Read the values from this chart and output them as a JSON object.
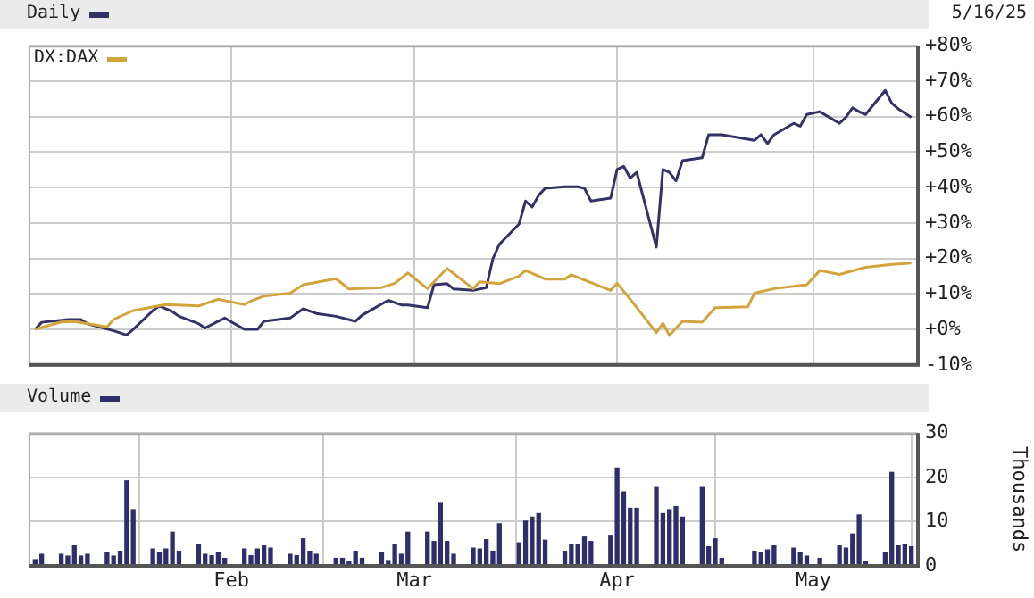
{
  "chart_data": [
    {
      "type": "line",
      "annotations": [
        "5/16/25"
      ],
      "xlim": [
        "--01-01",
        "--05-17"
      ],
      "xticks": [
        {
          "value": "--02-01",
          "label": null
        },
        {
          "value": "--03-01",
          "label": null
        },
        {
          "value": "--04-01",
          "label": null
        },
        {
          "value": "--05-01",
          "label": null
        }
      ],
      "ylim": [
        -10,
        80
      ],
      "yticks": [
        {
          "value": -10,
          "label": "-10%"
        },
        {
          "value": 0,
          "label": "+0%"
        },
        {
          "value": 10,
          "label": "+10%"
        },
        {
          "value": 20,
          "label": "+20%"
        },
        {
          "value": 30,
          "label": "+30%"
        },
        {
          "value": 40,
          "label": "+40%"
        },
        {
          "value": 50,
          "label": "+50%"
        },
        {
          "value": 60,
          "label": "+60%"
        },
        {
          "value": 70,
          "label": "+70%"
        },
        {
          "value": 80,
          "label": "+80%"
        }
      ],
      "tick_labels": "y",
      "grid": true,
      "legend": "top left",
      "series": [
        {
          "name": "Daily",
          "color": "#333366",
          "x": [
            "--01-02",
            "--01-03",
            "--01-07",
            "--01-09",
            "--01-10",
            "--01-14",
            "--01-16",
            "--01-17",
            "--01-20",
            "--01-21",
            "--01-23",
            "--01-24",
            "--01-27",
            "--01-28",
            "--01-30",
            "--01-31",
            "--02-03",
            "--02-05",
            "--02-06",
            "--02-10",
            "--02-12",
            "--02-14",
            "--02-17",
            "--02-20",
            "--02-21",
            "--02-25",
            "--02-27",
            "--02-28",
            "--03-03",
            "--03-04",
            "--03-06",
            "--03-07",
            "--03-10",
            "--03-12",
            "--03-13",
            "--03-14",
            "--03-17",
            "--03-18",
            "--03-19",
            "--03-20",
            "--03-21",
            "--03-24",
            "--03-26",
            "--03-27",
            "--03-28",
            "--03-31",
            "--04-01",
            "--04-02",
            "--04-03",
            "--04-04",
            "--04-07",
            "--04-08",
            "--04-09",
            "--04-10",
            "--04-11",
            "--04-14",
            "--04-15",
            "--04-16",
            "--04-17",
            "--04-22",
            "--04-23",
            "--04-24",
            "--04-25",
            "--04-28",
            "--04-29",
            "--04-30",
            "--05-02",
            "--05-05",
            "--05-06",
            "--05-07",
            "--05-08",
            "--05-09",
            "--05-12",
            "--05-13",
            "--05-14",
            "--05-16"
          ],
          "values": [
            0,
            2,
            2.8,
            2.8,
            1.6,
            -0.4,
            -1.6,
            0,
            5.3,
            6.6,
            5,
            3.7,
            1.6,
            0.4,
            2.3,
            3.2,
            0,
            0,
            2.3,
            3.2,
            5.8,
            4.5,
            3.7,
            2.3,
            4,
            8.2,
            6.9,
            6.9,
            6.1,
            12.6,
            12.9,
            11.4,
            11,
            11.8,
            19.9,
            24,
            29.7,
            36.2,
            34.5,
            37.8,
            39.8,
            40.2,
            40.2,
            39.8,
            36.2,
            37,
            45.1,
            46,
            42.7,
            44.3,
            23.2,
            45.1,
            44.3,
            41.9,
            47.6,
            48.4,
            54.9,
            54.9,
            54.9,
            53.3,
            54.9,
            52.4,
            54.9,
            58.1,
            57.3,
            60.6,
            61.4,
            58.1,
            59.8,
            62.5,
            61.4,
            60.6,
            67.4,
            63.8,
            62.2,
            59.8
          ]
        },
        {
          "name": "DX:DAX",
          "color": "#d4a43c",
          "x": [
            "--01-02",
            "--01-06",
            "--01-08",
            "--01-13",
            "--01-14",
            "--01-17",
            "--01-22",
            "--01-27",
            "--01-30",
            "--02-03",
            "--02-04",
            "--02-06",
            "--02-10",
            "--02-12",
            "--02-17",
            "--02-19",
            "--02-24",
            "--02-26",
            "--02-28",
            "--03-03",
            "--03-06",
            "--03-10",
            "--03-11",
            "--03-14",
            "--03-17",
            "--03-18",
            "--03-21",
            "--03-24",
            "--03-25",
            "--03-31",
            "--04-01",
            "--04-03",
            "--04-07",
            "--04-08",
            "--04-09",
            "--04-11",
            "--04-14",
            "--04-16",
            "--04-21",
            "--04-22",
            "--04-25",
            "--04-30",
            "--05-02",
            "--05-05",
            "--05-09",
            "--05-13",
            "--05-16"
          ],
          "values": [
            0,
            2.1,
            2.2,
            0.7,
            2.8,
            5.3,
            7,
            6.6,
            8.5,
            7,
            8,
            9.4,
            10.2,
            12.6,
            14.3,
            11.4,
            11.8,
            13,
            15.9,
            11.5,
            17.2,
            11.5,
            13.4,
            12.9,
            15,
            16.6,
            14.2,
            14.2,
            15.4,
            11,
            13,
            8.5,
            -0.9,
            1.7,
            -1.7,
            2.3,
            2,
            6.1,
            6.4,
            10.2,
            11.5,
            12.6,
            16.6,
            15.5,
            17.5,
            18.3,
            18.7
          ]
        }
      ]
    },
    {
      "type": "bar",
      "ylabel": "Thousands",
      "xlim": [
        "--01-01",
        "--05-17"
      ],
      "xticks": [
        {
          "value": "--02-01",
          "label": "Feb"
        },
        {
          "value": "--03-01",
          "label": "Mar"
        },
        {
          "value": "--04-01",
          "label": "Apr"
        },
        {
          "value": "--05-01",
          "label": "May"
        }
      ],
      "ylim": [
        0,
        30
      ],
      "yticks": [
        0,
        10,
        20,
        30
      ],
      "grid": true,
      "legend": "top left",
      "series": [
        {
          "name": "Volume",
          "color": "#2e2e6b",
          "x": [
            "--01-02",
            "--01-03",
            "--01-06",
            "--01-07",
            "--01-08",
            "--01-09",
            "--01-10",
            "--01-13",
            "--01-14",
            "--01-15",
            "--01-16",
            "--01-17",
            "--01-20",
            "--01-21",
            "--01-22",
            "--01-23",
            "--01-24",
            "--01-27",
            "--01-28",
            "--01-29",
            "--01-30",
            "--01-31",
            "--02-03",
            "--02-04",
            "--02-05",
            "--02-06",
            "--02-07",
            "--02-10",
            "--02-11",
            "--02-12",
            "--02-13",
            "--02-14",
            "--02-17",
            "--02-18",
            "--02-19",
            "--02-20",
            "--02-21",
            "--02-24",
            "--02-25",
            "--02-26",
            "--02-27",
            "--02-28",
            "--03-03",
            "--03-04",
            "--03-05",
            "--03-06",
            "--03-07",
            "--03-10",
            "--03-11",
            "--03-12",
            "--03-13",
            "--03-14",
            "--03-17",
            "--03-18",
            "--03-19",
            "--03-20",
            "--03-21",
            "--03-24",
            "--03-25",
            "--03-26",
            "--03-27",
            "--03-28",
            "--03-31",
            "--04-01",
            "--04-02",
            "--04-03",
            "--04-04",
            "--04-07",
            "--04-08",
            "--04-09",
            "--04-10",
            "--04-11",
            "--04-14",
            "--04-15",
            "--04-16",
            "--04-17",
            "--04-22",
            "--04-23",
            "--04-24",
            "--04-25",
            "--04-28",
            "--04-29",
            "--04-30",
            "--05-02",
            "--05-05",
            "--05-06",
            "--05-07",
            "--05-08",
            "--05-09",
            "--05-12",
            "--05-13",
            "--05-14",
            "--05-15",
            "--05-16"
          ],
          "values": [
            1.4,
            2.6,
            2.6,
            2.2,
            4.5,
            2.2,
            2.6,
            2.9,
            2.2,
            3.3,
            19.2,
            12.7,
            3.8,
            3,
            3.8,
            7.6,
            3.3,
            4.8,
            2.6,
            2.3,
            2.9,
            1.7,
            3.8,
            2.3,
            3.8,
            4.5,
            4,
            2.6,
            2.3,
            6.1,
            3.3,
            2.6,
            1.7,
            1.7,
            1,
            3.3,
            1.7,
            2.9,
            1.2,
            4.8,
            2.6,
            7.6,
            7.6,
            5.5,
            14.1,
            5.5,
            2.6,
            4,
            3.8,
            5.9,
            3.3,
            9.5,
            5.2,
            10.1,
            11,
            11.8,
            5.8,
            3.3,
            4.8,
            4.8,
            6.5,
            5.5,
            6.9,
            22.1,
            16.7,
            13,
            13,
            17.7,
            11.8,
            12.7,
            13.4,
            11,
            17.7,
            4.3,
            6.1,
            1.7,
            3.3,
            2.9,
            3.6,
            4.5,
            4,
            2.9,
            2.2,
            1.7,
            4.5,
            4,
            7.2,
            11.5,
            1,
            2.9,
            21.1,
            4.5,
            4.8,
            4.3
          ]
        }
      ]
    }
  ]
}
